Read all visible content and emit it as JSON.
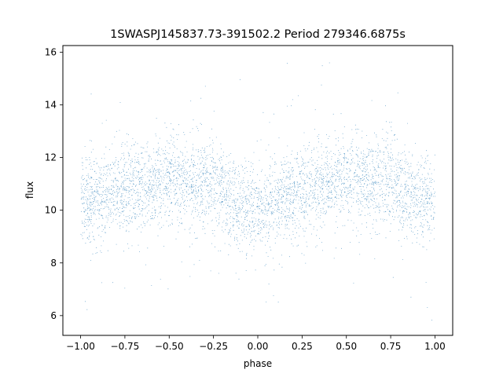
{
  "chart_data": {
    "type": "scatter",
    "title": "1SWASPJ145837.73-391502.2 Period 279346.6875s",
    "xlabel": "phase",
    "ylabel": "flux",
    "xlim": [
      -1.1,
      1.1
    ],
    "ylim": [
      5.25,
      16.25
    ],
    "xticks": [
      -1.0,
      -0.75,
      -0.5,
      -0.25,
      0.0,
      0.25,
      0.5,
      0.75,
      1.0
    ],
    "xtick_labels": [
      "−1.00",
      "−0.75",
      "−0.50",
      "−0.25",
      "0.00",
      "0.25",
      "0.50",
      "0.75",
      "1.00"
    ],
    "yticks": [
      6,
      8,
      10,
      12,
      14,
      16
    ],
    "ytick_labels": [
      "6",
      "8",
      "10",
      "12",
      "14",
      "16"
    ],
    "grid": false,
    "marker_color": "#1f77b4",
    "series": [
      {
        "x_range": [
          -1.0,
          1.0
        ],
        "y_range": [
          5.7,
          15.8
        ],
        "mean_curve": {
          "x": [
            -1.0,
            -0.85,
            -0.75,
            -0.5,
            -0.25,
            -0.15,
            0.0,
            0.15,
            0.25,
            0.5,
            0.75,
            0.85,
            1.0
          ],
          "y": [
            10.3,
            10.5,
            10.9,
            11.1,
            11.0,
            10.4,
            10.0,
            10.4,
            10.9,
            11.1,
            11.0,
            10.6,
            10.2
          ]
        },
        "core_spread": 0.8,
        "point_count": 14000
      }
    ]
  }
}
